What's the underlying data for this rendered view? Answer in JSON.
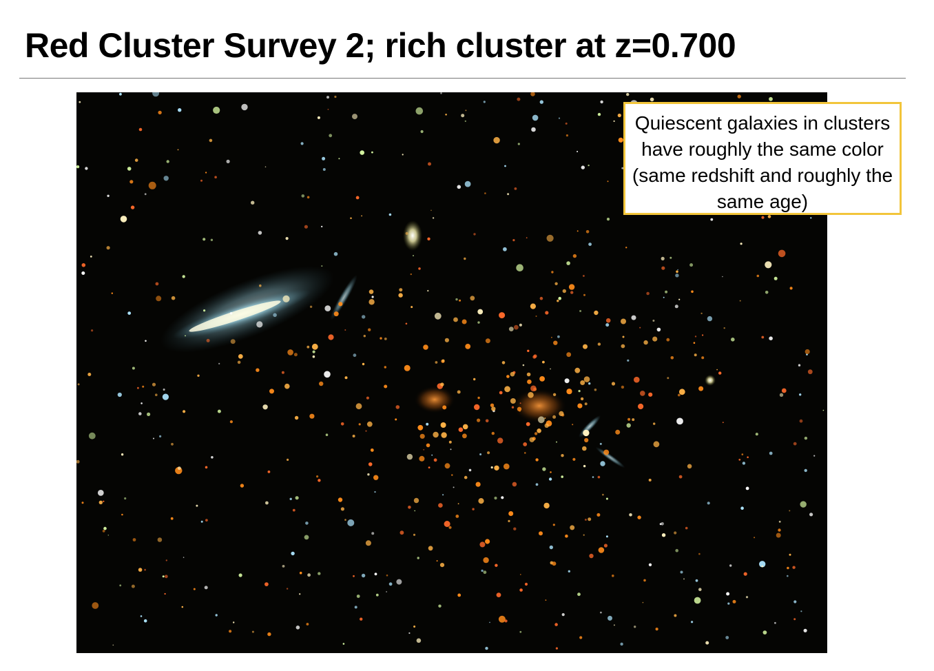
{
  "slide": {
    "title": "Red Cluster Survey 2; rich cluster at z=0.700"
  },
  "callout": {
    "text": "Quiescent galaxies in clusters have roughly the same color (same redshift and roughly the same age)",
    "border_color": "#f2c53a"
  },
  "image": {
    "background_color": "#050503",
    "galaxy_colors": [
      "#ffb347",
      "#ff8c1a",
      "#fff2c0",
      "#aee6ff",
      "#d4f5a0",
      "#ffffff",
      "#ff6a2a"
    ]
  }
}
